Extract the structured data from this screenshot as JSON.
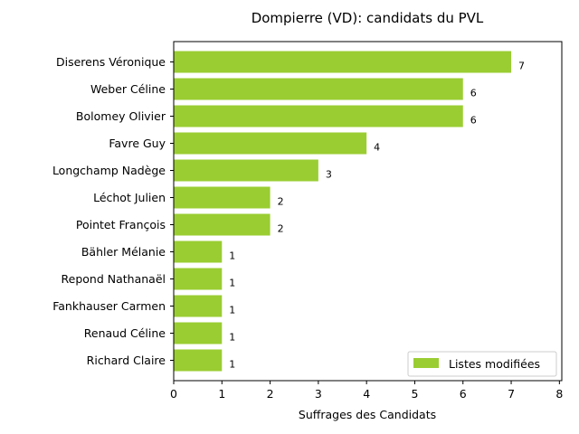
{
  "chart_data": {
    "type": "bar",
    "orientation": "horizontal",
    "title": "Dompierre (VD): candidats du PVL",
    "xlabel": "Suffrages des Candidats",
    "ylabel": "",
    "xlim": [
      0,
      8.05
    ],
    "xticks": [
      0,
      1,
      2,
      3,
      4,
      5,
      6,
      7,
      8
    ],
    "grid": false,
    "legend_position": "lower-right",
    "bar_color": "#9acd32",
    "categories": [
      "Diserens Véronique",
      "Weber Céline",
      "Bolomey Olivier",
      "Favre Guy",
      "Longchamp Nadège",
      "Léchot Julien",
      "Pointet François",
      "Bähler Mélanie",
      "Repond Nathanaël",
      "Fankhauser Carmen",
      "Renaud Céline",
      "Richard Claire"
    ],
    "series": [
      {
        "name": "Listes modifiées",
        "values": [
          7,
          6,
          6,
          4,
          3,
          2,
          2,
          1,
          1,
          1,
          1,
          1
        ]
      }
    ]
  }
}
